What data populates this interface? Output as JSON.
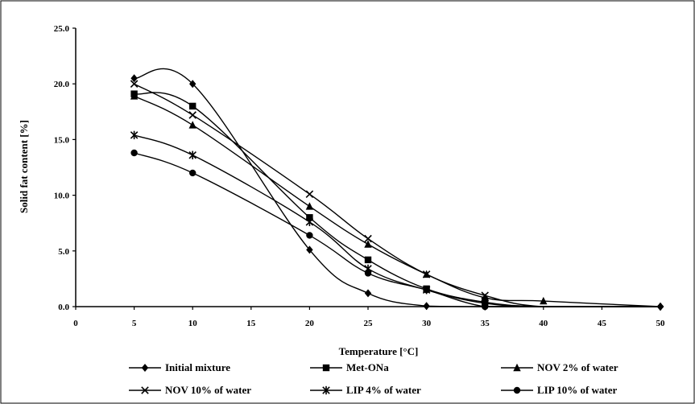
{
  "chart_data": {
    "type": "line",
    "xlabel": "Temperature [°C]",
    "ylabel": "Solid fat content [%]",
    "xlim": [
      0,
      50
    ],
    "ylim": [
      0,
      25
    ],
    "x_ticks": [
      "0",
      "5",
      "10",
      "15",
      "20",
      "25",
      "30",
      "35",
      "40",
      "45",
      "50"
    ],
    "y_ticks": [
      "0.0",
      "5.0",
      "10.0",
      "15.0",
      "20.0",
      "25.0"
    ],
    "grid": false,
    "legend_position": "bottom",
    "x": [
      5,
      10,
      20,
      25,
      30,
      35,
      40,
      50
    ],
    "series": [
      {
        "name": "Initial mixture",
        "marker": "diamond",
        "values": [
          20.5,
          20.0,
          5.1,
          1.2,
          0.05,
          0.0,
          0.0,
          0.0
        ]
      },
      {
        "name": "Met-ONa",
        "marker": "square",
        "values": [
          19.1,
          18.0,
          8.0,
          4.2,
          1.6,
          0.4,
          0.0,
          0.0
        ]
      },
      {
        "name": "NOV 2% of water",
        "marker": "triangle",
        "values": [
          18.9,
          16.3,
          9.0,
          5.6,
          2.9,
          0.8,
          0.5,
          0.0
        ]
      },
      {
        "name": "NOV 10% of water",
        "marker": "x",
        "values": [
          20.0,
          17.2,
          10.1,
          6.1,
          2.9,
          1.0,
          0.0,
          0.0
        ]
      },
      {
        "name": "LIP 4% of water",
        "marker": "star",
        "values": [
          15.4,
          13.6,
          7.6,
          3.4,
          1.5,
          0.3,
          0.0,
          0.0
        ]
      },
      {
        "name": "LIP 10% of water",
        "marker": "circle",
        "values": [
          13.8,
          12.0,
          6.4,
          3.0,
          1.5,
          0.0,
          0.0,
          0.0
        ]
      }
    ]
  }
}
